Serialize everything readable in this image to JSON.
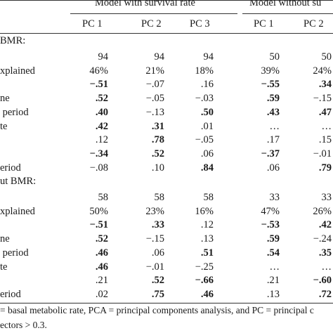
{
  "header": {
    "group1": "Model with survival rate",
    "group2": "Model without su",
    "columns": [
      "PC 1",
      "PC 2",
      "PC 3",
      "PC 1",
      "PC 2"
    ]
  },
  "sections": [
    {
      "title": "BMR:",
      "rows": [
        {
          "label": "",
          "cells": [
            {
              "v": "94"
            },
            {
              "v": "94"
            },
            {
              "v": "94"
            },
            {
              "v": "50"
            },
            {
              "v": "50"
            }
          ]
        },
        {
          "label": "xplained",
          "cells": [
            {
              "v": "46%"
            },
            {
              "v": "21%"
            },
            {
              "v": "18%"
            },
            {
              "v": "39%"
            },
            {
              "v": "24%"
            }
          ]
        },
        {
          "label": "",
          "cells": [
            {
              "v": "−.51",
              "b": true
            },
            {
              "v": "−.07"
            },
            {
              "v": ".16"
            },
            {
              "v": "−.55",
              "b": true
            },
            {
              "v": ".34",
              "b": true
            }
          ]
        },
        {
          "label": "ne",
          "cells": [
            {
              "v": ".52",
              "b": true
            },
            {
              "v": "−.05"
            },
            {
              "v": "−.03"
            },
            {
              "v": ".59",
              "b": true
            },
            {
              "v": "−.15"
            }
          ]
        },
        {
          "label": " period",
          "cells": [
            {
              "v": ".40",
              "b": true
            },
            {
              "v": "−.13"
            },
            {
              "v": ".50",
              "b": true
            },
            {
              "v": ".43",
              "b": true
            },
            {
              "v": ".47",
              "b": true
            }
          ]
        },
        {
          "label": "te",
          "cells": [
            {
              "v": ".42",
              "b": true
            },
            {
              "v": ".31",
              "b": true
            },
            {
              "v": ".01"
            },
            {
              "v": "…"
            },
            {
              "v": "…"
            }
          ]
        },
        {
          "label": "",
          "cells": [
            {
              "v": ".12"
            },
            {
              "v": ".78",
              "b": true
            },
            {
              "v": "−.05"
            },
            {
              "v": ".17"
            },
            {
              "v": ".15"
            }
          ]
        },
        {
          "label": "",
          "cells": [
            {
              "v": "−.34",
              "b": true
            },
            {
              "v": ".52",
              "b": true
            },
            {
              "v": ".06"
            },
            {
              "v": "−.37",
              "b": true
            },
            {
              "v": "−.01"
            }
          ]
        },
        {
          "label": "eriod",
          "cells": [
            {
              "v": "−.08"
            },
            {
              "v": ".10"
            },
            {
              "v": ".84",
              "b": true
            },
            {
              "v": ".06"
            },
            {
              "v": ".79",
              "b": true
            }
          ]
        }
      ]
    },
    {
      "title": "ut BMR:",
      "rows": [
        {
          "label": "",
          "cells": [
            {
              "v": "58"
            },
            {
              "v": "58"
            },
            {
              "v": "58"
            },
            {
              "v": "33"
            },
            {
              "v": "33"
            }
          ]
        },
        {
          "label": "xplained",
          "cells": [
            {
              "v": "50%"
            },
            {
              "v": "23%"
            },
            {
              "v": "16%"
            },
            {
              "v": "47%"
            },
            {
              "v": "26%"
            }
          ]
        },
        {
          "label": "",
          "cells": [
            {
              "v": "−.51",
              "b": true
            },
            {
              "v": ".33",
              "b": true
            },
            {
              "v": ".12"
            },
            {
              "v": "−.53",
              "b": true
            },
            {
              "v": ".42",
              "b": true
            }
          ]
        },
        {
          "label": "ne",
          "cells": [
            {
              "v": ".52",
              "b": true
            },
            {
              "v": "−.15"
            },
            {
              "v": ".13"
            },
            {
              "v": ".59",
              "b": true
            },
            {
              "v": "−.24"
            }
          ]
        },
        {
          "label": " period",
          "cells": [
            {
              "v": ".46",
              "b": true
            },
            {
              "v": ".06"
            },
            {
              "v": ".51",
              "b": true
            },
            {
              "v": ".54",
              "b": true
            },
            {
              "v": ".35",
              "b": true
            }
          ]
        },
        {
          "label": "te",
          "cells": [
            {
              "v": ".46",
              "b": true
            },
            {
              "v": "−.01"
            },
            {
              "v": "−.25"
            },
            {
              "v": "…"
            },
            {
              "v": "…"
            }
          ]
        },
        {
          "label": "",
          "cells": [
            {
              "v": ".21"
            },
            {
              "v": ".52",
              "b": true
            },
            {
              "v": "−.66",
              "b": true
            },
            {
              "v": ".21"
            },
            {
              "v": "−.60",
              "b": true
            }
          ]
        },
        {
          "label": "eriod",
          "cells": [
            {
              "v": ".02"
            },
            {
              "v": ".75",
              "b": true
            },
            {
              "v": ".46",
              "b": true
            },
            {
              "v": ".13"
            },
            {
              "v": ".72",
              "b": true
            }
          ]
        }
      ]
    }
  ],
  "footnote": {
    "line1": "= basal metabolic rate, PCA = principal components analysis, and PC = principal c",
    "line2": "ectors > 0.3."
  }
}
